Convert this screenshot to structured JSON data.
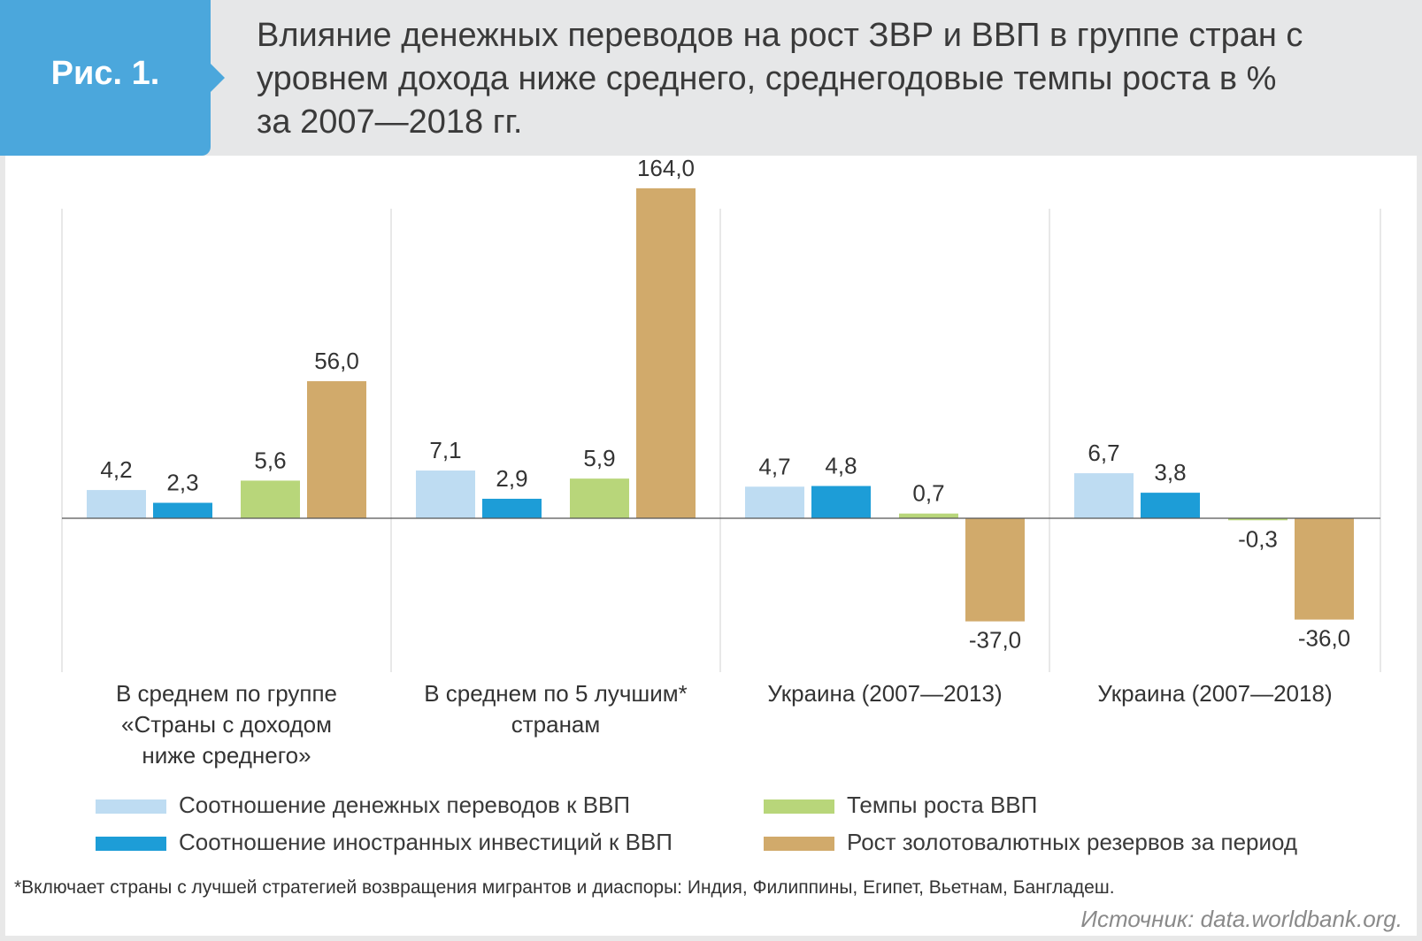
{
  "figure": {
    "badge": "Рис. 1.",
    "title_lines": [
      "Влияние денежных переводов на рост ЗВР и ВВП в группе стран с",
      "уровнем дохода ниже среднего, среднегодовые темпы роста в %",
      "за 2007—2018 гг."
    ],
    "footnote": "*Включает страны с лучшей стратегией возвращения мигрантов и диаспоры: Индия, Филиппины, Египет, Вьетнам, Бангладеш.",
    "source": "Источник: data.worldbank.org."
  },
  "chart_data": {
    "type": "bar",
    "title": "Влияние денежных переводов на рост ЗВР и ВВП в группе стран с уровнем дохода ниже среднего, среднегодовые темпы роста в % за 2007—2018 гг.",
    "xlabel": "",
    "ylabel": "",
    "value_scale_note": "bars drawn on a compressed (non-linear) scale in the original",
    "category_lines": [
      [
        "В среднем по группе",
        "«Страны с доходом",
        "ниже среднего»"
      ],
      [
        "В среднем по 5 лучшим*",
        "странам"
      ],
      [
        "Украина (2007—2013)"
      ],
      [
        "Украина (2007—2018)"
      ]
    ],
    "categories": [
      "В среднем по группе «Страны с доходом ниже среднего»",
      "В среднем по 5 лучшим* странам",
      "Украина (2007—2013)",
      "Украина (2007—2018)"
    ],
    "series": [
      {
        "name": "Соотношение денежных переводов к ВВП",
        "color": "#bedcf2",
        "values": [
          4.2,
          7.1,
          4.7,
          6.7
        ],
        "labels": [
          "4,2",
          "7,1",
          "4,7",
          "6,7"
        ]
      },
      {
        "name": "Соотношение иностранных инвестиций к ВВП",
        "color": "#1d9dd7",
        "values": [
          2.3,
          2.9,
          4.8,
          3.8
        ],
        "labels": [
          "2,3",
          "2,9",
          "4,8",
          "3,8"
        ]
      },
      {
        "name": "Темпы роста ВВП",
        "color": "#b8d67a",
        "values": [
          5.6,
          5.9,
          0.7,
          -0.3
        ],
        "labels": [
          "5,6",
          "5,9",
          "0,7",
          "-0,3"
        ]
      },
      {
        "name": "Рост золотовалютных резервов за период",
        "color": "#d1aa6b",
        "values": [
          56.0,
          164.0,
          -37.0,
          -36.0
        ],
        "labels": [
          "56,0",
          "164,0",
          "-37,0",
          "-36,0"
        ]
      }
    ],
    "legend_position": "bottom"
  }
}
